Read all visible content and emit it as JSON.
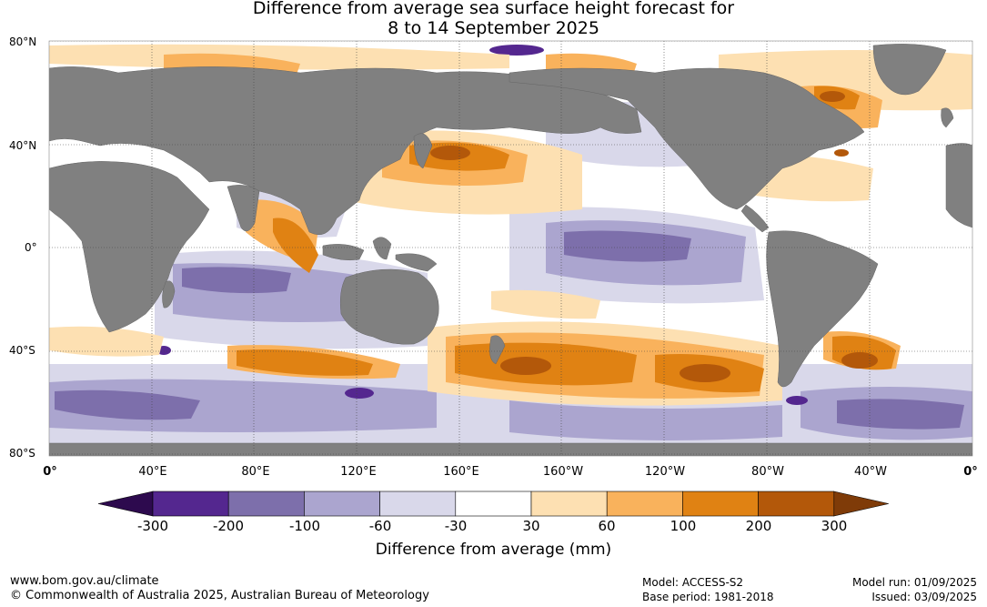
{
  "header": {
    "title_line1": "Difference from average sea surface height forecast for",
    "title_line2": "8 to 14 September 2025"
  },
  "map": {
    "lat_labels": [
      "80°N",
      "40°N",
      "0°",
      "40°S",
      "80°S"
    ],
    "lon_labels": [
      "0°",
      "40°E",
      "80°E",
      "120°E",
      "160°E",
      "160°W",
      "120°W",
      "80°W",
      "40°W",
      "0°"
    ],
    "land_color": "#808080",
    "ocean_base_color": "#ffffff"
  },
  "colorbar": {
    "title": "Difference from average (mm)",
    "ticks": [
      "-300",
      "-200",
      "-100",
      "-60",
      "-30",
      "30",
      "60",
      "100",
      "200",
      "300"
    ],
    "colors": [
      "#2d0a4e",
      "#54278f",
      "#7d6fab",
      "#aba5cf",
      "#d9d8ea",
      "#ffffff",
      "#fde0b2",
      "#f9b25c",
      "#e08213",
      "#b3580a",
      "#7f3b08"
    ]
  },
  "footer": {
    "url": "www.bom.gov.au/climate",
    "copyright": "© Commonwealth of Australia 2025, Australian Bureau of Meteorology",
    "model": "Model: ACCESS-S2",
    "base_period": "Base period: 1981-2018",
    "model_run": "Model run: 01/09/2025",
    "issued": "Issued: 03/09/2025"
  }
}
